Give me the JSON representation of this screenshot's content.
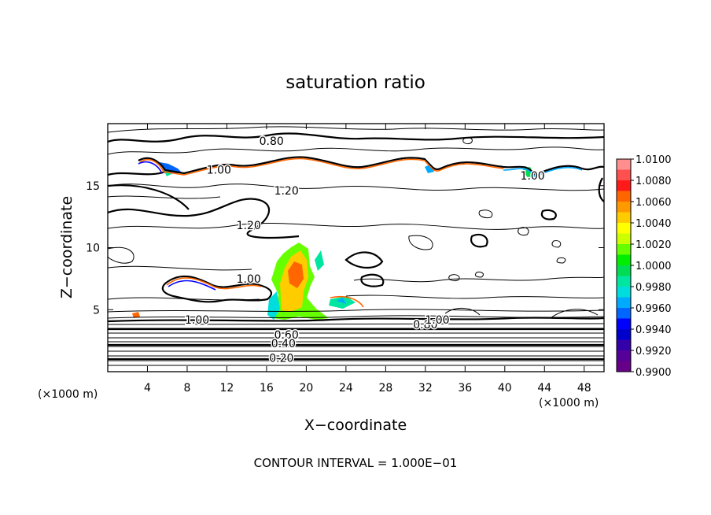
{
  "chart_data": {
    "type": "contour",
    "title": "saturation ratio",
    "xlabel": "X−coordinate",
    "ylabel": "Z−coordinate",
    "x_unit_left": "(×1000 m)",
    "x_unit_right": "(×1000 m)",
    "xlim": [
      0,
      50
    ],
    "ylim": [
      0,
      20
    ],
    "x_ticks": [
      4,
      8,
      12,
      16,
      20,
      24,
      28,
      32,
      36,
      40,
      44,
      48
    ],
    "y_ticks": [
      5,
      10,
      15
    ],
    "footer": "CONTOUR INTERVAL = 1.000E−01",
    "contour_interval": 0.1,
    "contour_labels": [
      {
        "text": "0.80",
        "x": 16.5,
        "z": 18.6
      },
      {
        "text": "1.00",
        "x": 11.2,
        "z": 16.3
      },
      {
        "text": "1.20",
        "x": 18.0,
        "z": 14.6
      },
      {
        "text": "1.20",
        "x": 14.2,
        "z": 11.8
      },
      {
        "text": "1.00",
        "x": 14.2,
        "z": 7.5
      },
      {
        "text": "1.00",
        "x": 42.8,
        "z": 15.8
      },
      {
        "text": "1.00",
        "x": 9.0,
        "z": 4.2
      },
      {
        "text": "0.60",
        "x": 18.0,
        "z": 3.0
      },
      {
        "text": "0.40",
        "x": 17.7,
        "z": 2.3
      },
      {
        "text": "0.20",
        "x": 17.5,
        "z": 1.1
      },
      {
        "text": "0.80",
        "x": 32.0,
        "z": 3.8
      },
      {
        "text": "1.00",
        "x": 33.2,
        "z": 4.2
      }
    ],
    "colorbar": {
      "min": 0.99,
      "max": 1.01,
      "tick_labels": [
        "1.0100",
        "1.0080",
        "1.0060",
        "1.0040",
        "1.0020",
        "1.0000",
        "0.9980",
        "0.9960",
        "0.9940",
        "0.9920",
        "0.9900"
      ],
      "colors": [
        "#ff8f8f",
        "#ff5050",
        "#ff1a1a",
        "#ff6600",
        "#ff9900",
        "#ffcc00",
        "#ffff00",
        "#ccff00",
        "#66ff00",
        "#00ee00",
        "#00dd55",
        "#00e6a0",
        "#00dddd",
        "#00aaff",
        "#0066ff",
        "#0000ff",
        "#0000cc",
        "#3300aa",
        "#550099",
        "#660088"
      ]
    }
  }
}
